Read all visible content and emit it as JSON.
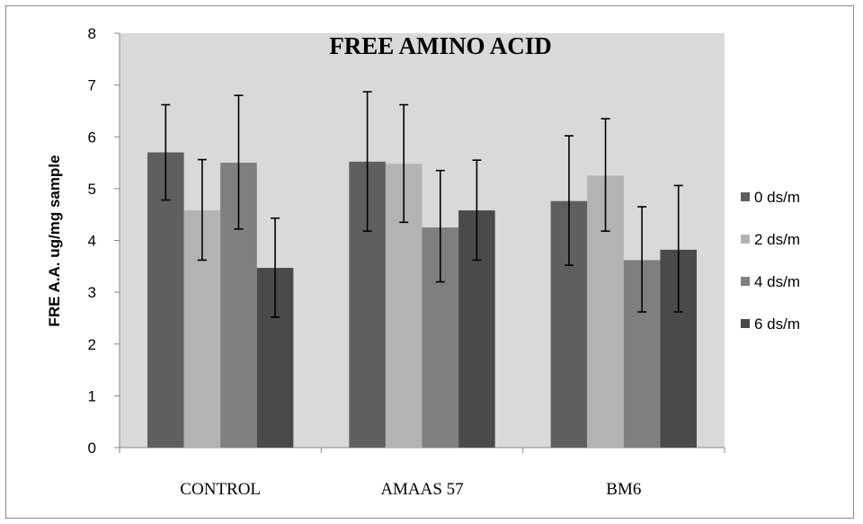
{
  "chart_data": {
    "type": "bar",
    "title": "FREE AMINO ACID",
    "ylabel": "FRE A.A. ug/mg sample",
    "xlabel": "",
    "ylim": [
      0,
      8
    ],
    "yticks": [
      "0",
      "1",
      "2",
      "3",
      "4",
      "5",
      "6",
      "7",
      "8"
    ],
    "grid": false,
    "legend_position": "right",
    "categories": [
      "CONTROL",
      "AMAAS 57",
      "BM6"
    ],
    "series": [
      {
        "name": "0 ds/m",
        "color": "#5f5f5f",
        "values": [
          5.7,
          5.52,
          4.76
        ],
        "err_low": [
          4.78,
          4.18,
          3.52
        ],
        "err_high": [
          6.62,
          6.87,
          6.02
        ]
      },
      {
        "name": "2 ds/m",
        "color": "#b3b3b3",
        "values": [
          4.58,
          5.48,
          5.25
        ],
        "err_low": [
          3.62,
          4.35,
          4.18
        ],
        "err_high": [
          5.56,
          6.62,
          6.35
        ]
      },
      {
        "name": "4 ds/m",
        "color": "#7f7f7f",
        "values": [
          5.5,
          4.25,
          3.62
        ],
        "err_low": [
          4.22,
          3.2,
          2.62
        ],
        "err_high": [
          6.8,
          5.35,
          4.65
        ]
      },
      {
        "name": "6 ds/m",
        "color": "#4a4a4a",
        "values": [
          3.47,
          4.58,
          3.82
        ],
        "err_low": [
          2.52,
          3.62,
          2.62
        ],
        "err_high": [
          4.43,
          5.55,
          5.06
        ]
      }
    ],
    "plot_background": "#d9d9d9"
  }
}
